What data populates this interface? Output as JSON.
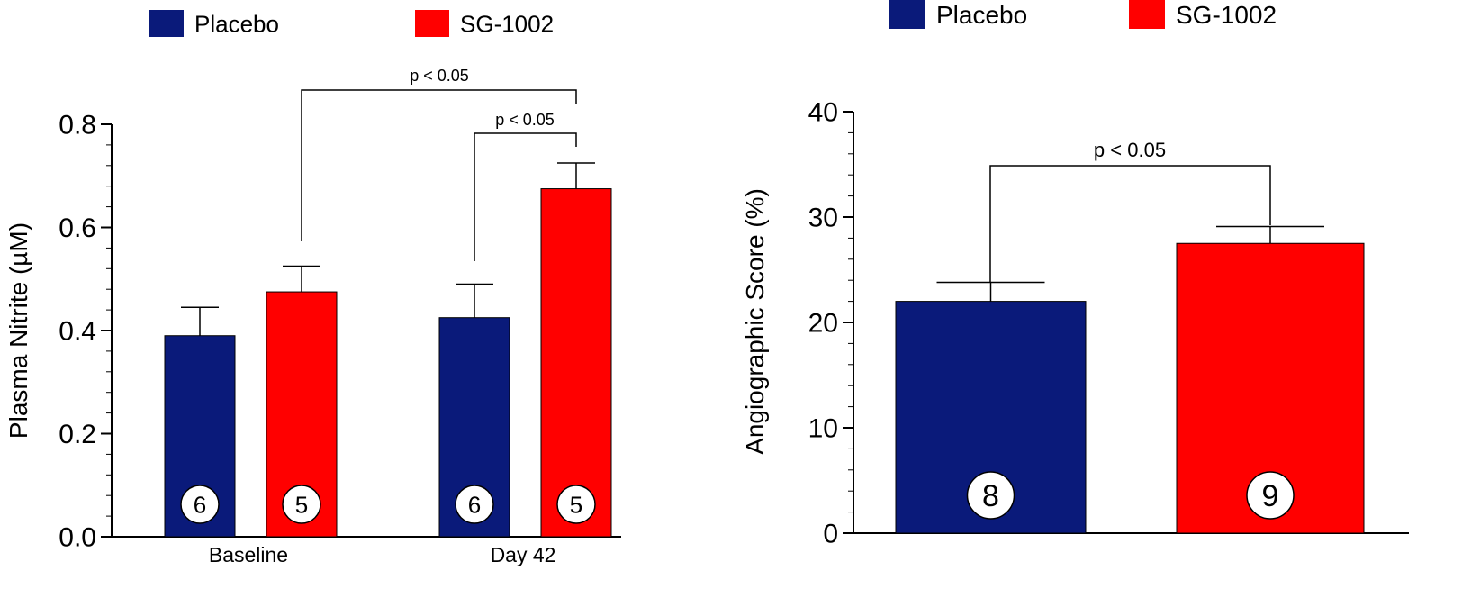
{
  "chart_data": [
    {
      "type": "bar",
      "categories": [
        "Baseline",
        "Day 42"
      ],
      "series": [
        {
          "name": "Placebo",
          "color": "#0a1a7a",
          "values": [
            0.39,
            0.425
          ],
          "errors": [
            0.055,
            0.065
          ],
          "n_labels": [
            "6",
            "6"
          ]
        },
        {
          "name": "SG-1002",
          "color": "#ff0000",
          "values": [
            0.475,
            0.675
          ],
          "errors": [
            0.05,
            0.05
          ],
          "n_labels": [
            "5",
            "5"
          ]
        }
      ],
      "ylabel": "Plasma Nitrite (µM)",
      "ylim": [
        0,
        0.8
      ],
      "yticks": [
        "0.0",
        "0.2",
        "0.4",
        "0.6",
        "0.8"
      ],
      "yticks_values": [
        0,
        0.2,
        0.4,
        0.6,
        0.8
      ],
      "legend": {
        "placement": "top",
        "entries": [
          "Placebo",
          "SG-1002"
        ]
      },
      "annotations": [
        {
          "text": "p < 0.05",
          "from": "Baseline / SG-1002",
          "to": "Day 42 / SG-1002"
        },
        {
          "text": "p < 0.05",
          "from": "Day 42 / Placebo",
          "to": "Day 42 / SG-1002"
        }
      ],
      "grid": false
    },
    {
      "type": "bar",
      "categories": [
        "Placebo",
        "SG-1002"
      ],
      "series": [
        {
          "name": "Angiographic Score",
          "values": [
            22,
            27.5
          ],
          "errors": [
            1.8,
            1.6
          ],
          "colors": [
            "#0a1a7a",
            "#ff0000"
          ],
          "n_labels": [
            "8",
            "9"
          ]
        }
      ],
      "ylabel": "Angiographic Score (%)",
      "ylim": [
        0,
        40
      ],
      "yticks": [
        "0",
        "10",
        "20",
        "30",
        "40"
      ],
      "yticks_values": [
        0,
        10,
        20,
        30,
        40
      ],
      "legend": {
        "placement": "top",
        "entries": [
          "Placebo",
          "SG-1002"
        ]
      },
      "annotations": [
        {
          "text": "p < 0.05",
          "from": "Placebo",
          "to": "SG-1002"
        }
      ],
      "grid": false
    }
  ]
}
